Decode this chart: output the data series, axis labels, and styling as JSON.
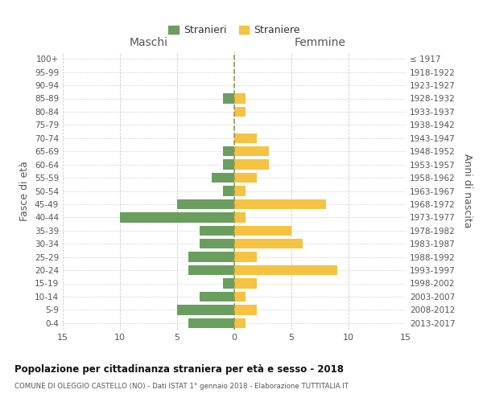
{
  "age_groups": [
    "0-4",
    "5-9",
    "10-14",
    "15-19",
    "20-24",
    "25-29",
    "30-34",
    "35-39",
    "40-44",
    "45-49",
    "50-54",
    "55-59",
    "60-64",
    "65-69",
    "70-74",
    "75-79",
    "80-84",
    "85-89",
    "90-94",
    "95-99",
    "100+"
  ],
  "birth_years": [
    "2013-2017",
    "2008-2012",
    "2003-2007",
    "1998-2002",
    "1993-1997",
    "1988-1992",
    "1983-1987",
    "1978-1982",
    "1973-1977",
    "1968-1972",
    "1963-1967",
    "1958-1962",
    "1953-1957",
    "1948-1952",
    "1943-1947",
    "1938-1942",
    "1933-1937",
    "1928-1932",
    "1923-1927",
    "1918-1922",
    "≤ 1917"
  ],
  "maschi": [
    4,
    5,
    3,
    1,
    4,
    4,
    3,
    3,
    10,
    5,
    1,
    2,
    1,
    1,
    0,
    0,
    0,
    1,
    0,
    0,
    0
  ],
  "femmine": [
    1,
    2,
    1,
    2,
    9,
    2,
    6,
    5,
    1,
    8,
    1,
    2,
    3,
    3,
    2,
    0,
    1,
    1,
    0,
    0,
    0
  ],
  "color_maschi": "#6a9e5f",
  "color_femmine": "#f5c242",
  "xlim": 15,
  "title": "Popolazione per cittadinanza straniera per età e sesso - 2018",
  "subtitle": "COMUNE DI OLEGGIO CASTELLO (NO) - Dati ISTAT 1° gennaio 2018 - Elaborazione TUTTITALIA.IT",
  "ylabel_left": "Fasce di età",
  "ylabel_right": "Anni di nascita",
  "legend_maschi": "Stranieri",
  "legend_femmine": "Straniere",
  "header_maschi": "Maschi",
  "header_femmine": "Femmine"
}
